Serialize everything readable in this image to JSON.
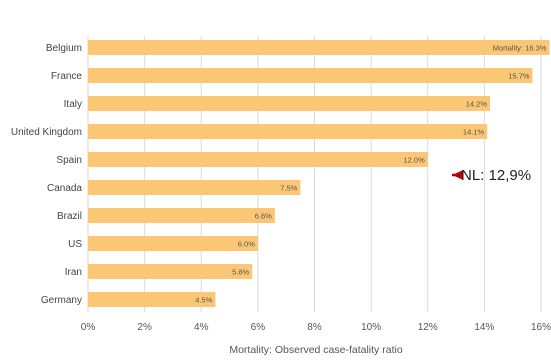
{
  "chart_data": {
    "type": "bar",
    "orientation": "horizontal",
    "categories": [
      "Belgium",
      "France",
      "Italy",
      "United Kingdom",
      "Spain",
      "Canada",
      "Brazil",
      "US",
      "Iran",
      "Germany"
    ],
    "values": [
      16.3,
      15.7,
      14.2,
      14.1,
      12.0,
      7.5,
      6.6,
      6.0,
      5.8,
      4.5
    ],
    "value_labels": [
      "Mortality: 16.3%",
      "15.7%",
      "14.2%",
      "14.1%",
      "12.0%",
      "7.5%",
      "6.6%",
      "6.0%",
      "5.8%",
      "4.5%"
    ],
    "xlabel": "Mortality: Observed case-fatality ratio",
    "ylabel": "",
    "xlim": [
      0,
      16
    ],
    "xticks": [
      0,
      2,
      4,
      6,
      8,
      10,
      12,
      14,
      16
    ],
    "xtick_labels": [
      "0%",
      "2%",
      "4%",
      "6%",
      "8%",
      "10%",
      "12%",
      "14%",
      "16%"
    ],
    "grid": "vertical",
    "annotation": {
      "text": "NL: 12,9%",
      "value": 12.9,
      "row": "Spain",
      "arrow_color": "#c00000"
    },
    "colors": {
      "bar": "#fbc774",
      "grid": "#d9d9d9"
    }
  }
}
